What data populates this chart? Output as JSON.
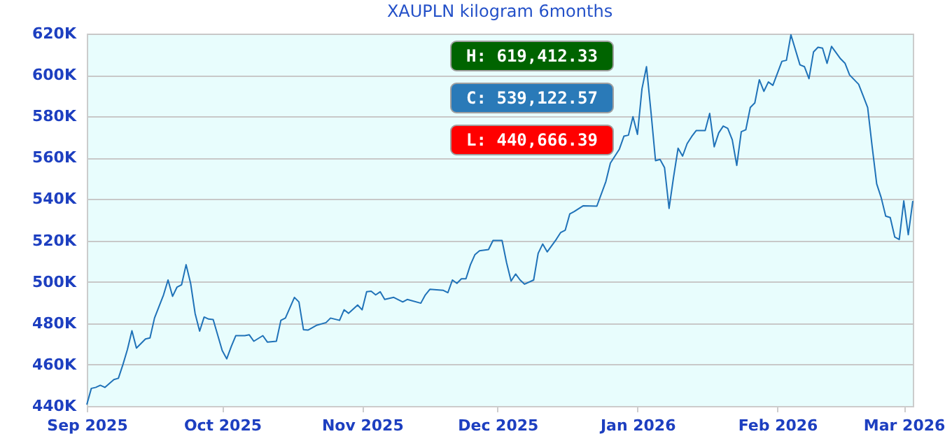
{
  "chart_data": {
    "type": "line",
    "title": "XAUPLN kilogram  6months",
    "x": [
      "2025-09-01",
      "2025-09-02",
      "2025-09-03",
      "2025-09-04",
      "2025-09-05",
      "2025-09-07",
      "2025-09-08",
      "2025-09-09",
      "2025-09-10",
      "2025-09-11",
      "2025-09-12",
      "2025-09-14",
      "2025-09-15",
      "2025-09-16",
      "2025-09-18",
      "2025-09-19",
      "2025-09-20",
      "2025-09-21",
      "2025-09-22",
      "2025-09-23",
      "2025-09-24",
      "2025-09-25",
      "2025-09-26",
      "2025-09-27",
      "2025-09-28",
      "2025-09-29",
      "2025-10-01",
      "2025-10-02",
      "2025-10-03",
      "2025-10-04",
      "2025-10-06",
      "2025-10-07",
      "2025-10-08",
      "2025-10-10",
      "2025-10-11",
      "2025-10-13",
      "2025-10-14",
      "2025-10-15",
      "2025-10-17",
      "2025-10-18",
      "2025-10-19",
      "2025-10-20",
      "2025-10-22",
      "2025-10-24",
      "2025-10-25",
      "2025-10-27",
      "2025-10-28",
      "2025-10-29",
      "2025-10-31",
      "2025-11-01",
      "2025-11-02",
      "2025-11-03",
      "2025-11-04",
      "2025-11-05",
      "2025-11-06",
      "2025-11-08",
      "2025-11-10",
      "2025-11-11",
      "2025-11-14",
      "2025-11-15",
      "2025-11-16",
      "2025-11-19",
      "2025-11-20",
      "2025-11-21",
      "2025-11-22",
      "2025-11-23",
      "2025-11-24",
      "2025-11-25",
      "2025-11-26",
      "2025-11-27",
      "2025-11-29",
      "2025-11-30",
      "2025-12-02",
      "2025-12-03",
      "2025-12-04",
      "2025-12-05",
      "2025-12-06",
      "2025-12-07",
      "2025-12-09",
      "2025-12-10",
      "2025-12-11",
      "2025-12-12",
      "2025-12-14",
      "2025-12-15",
      "2025-12-16",
      "2025-12-17",
      "2025-12-18",
      "2025-12-20",
      "2025-12-23",
      "2025-12-25",
      "2025-12-26",
      "2025-12-27",
      "2025-12-28",
      "2025-12-29",
      "2025-12-30",
      "2025-12-31",
      "2026-01-01",
      "2026-01-02",
      "2026-01-03",
      "2026-01-04",
      "2026-01-05",
      "2026-01-06",
      "2026-01-07",
      "2026-01-08",
      "2026-01-09",
      "2026-01-10",
      "2026-01-11",
      "2026-01-12",
      "2026-01-13",
      "2026-01-14",
      "2026-01-16",
      "2026-01-17",
      "2026-01-18",
      "2026-01-19",
      "2026-01-20",
      "2026-01-21",
      "2026-01-22",
      "2026-01-23",
      "2026-01-24",
      "2026-01-25",
      "2026-01-26",
      "2026-01-27",
      "2026-01-28",
      "2026-01-29",
      "2026-01-30",
      "2026-01-31",
      "2026-02-02",
      "2026-02-03",
      "2026-02-04",
      "2026-02-06",
      "2026-02-07",
      "2026-02-08",
      "2026-02-09",
      "2026-02-10",
      "2026-02-11",
      "2026-02-12",
      "2026-02-13",
      "2026-02-15",
      "2026-02-16",
      "2026-02-17",
      "2026-02-19",
      "2026-02-20",
      "2026-02-21",
      "2026-02-22",
      "2026-02-23",
      "2026-02-24",
      "2026-02-25",
      "2026-02-26",
      "2026-02-27",
      "2026-02-28",
      "2026-03-01",
      "2026-03-02",
      "2026-03-03"
    ],
    "series": [
      {
        "color": "#1f72b8",
        "values": [
          440700,
          448500,
          449000,
          450000,
          449000,
          452800,
          453400,
          460000,
          467300,
          476400,
          468000,
          472400,
          472900,
          482500,
          493700,
          500900,
          493000,
          497500,
          498600,
          508300,
          499300,
          484700,
          476200,
          483000,
          482000,
          481800,
          466800,
          462800,
          468700,
          474000,
          474000,
          474400,
          471300,
          474000,
          470900,
          471300,
          481400,
          482500,
          492500,
          490300,
          476900,
          476700,
          479100,
          480300,
          482500,
          481400,
          486500,
          484800,
          488800,
          486500,
          495200,
          495500,
          493700,
          495200,
          491500,
          492500,
          490300,
          491500,
          489700,
          493700,
          496400,
          495900,
          494800,
          500900,
          499300,
          501500,
          501500,
          508300,
          513200,
          515000,
          515600,
          520000,
          520000,
          509300,
          500400,
          503800,
          500900,
          498900,
          500900,
          513800,
          518300,
          514500,
          520500,
          523900,
          525000,
          532800,
          534000,
          536800,
          536600,
          548500,
          557400,
          560800,
          564200,
          570400,
          570900,
          579800,
          571300,
          593300,
          604000,
          582000,
          558600,
          559200,
          555200,
          535500,
          550700,
          564600,
          560800,
          566800,
          570200,
          573100,
          573100,
          581400,
          565300,
          572000,
          575300,
          574200,
          568700,
          556300,
          572600,
          573500,
          584300,
          586500,
          597700,
          592100,
          596600,
          595000,
          606600,
          607100,
          619400,
          604900,
          604000,
          598200,
          611100,
          613400,
          613000,
          605600,
          613800,
          607800,
          605600,
          600000,
          595500,
          589900,
          584300,
          565300,
          547400,
          540700,
          531800,
          531100,
          521700,
          520500,
          539100,
          522800,
          539100
        ]
      }
    ],
    "xlim": [
      "2025-09-01",
      "2026-03-03"
    ],
    "xticks": [
      {
        "value": "2025-09-01",
        "label": "Sep 2025"
      },
      {
        "value": "2025-10-01",
        "label": "Oct 2025"
      },
      {
        "value": "2025-11-01",
        "label": "Nov 2025"
      },
      {
        "value": "2025-12-01",
        "label": "Dec 2025"
      },
      {
        "value": "2026-01-01",
        "label": "Jan 2026"
      },
      {
        "value": "2026-02-01",
        "label": "Feb 2026"
      },
      {
        "value": "2026-03-01",
        "label": "Mar 2026"
      }
    ],
    "ylim": [
      440000,
      620000
    ],
    "yticks": [
      {
        "value": 440000,
        "label": "440K"
      },
      {
        "value": 460000,
        "label": "460K"
      },
      {
        "value": 480000,
        "label": "480K"
      },
      {
        "value": 500000,
        "label": "500K"
      },
      {
        "value": 520000,
        "label": "520K"
      },
      {
        "value": 540000,
        "label": "540K"
      },
      {
        "value": 560000,
        "label": "560K"
      },
      {
        "value": 580000,
        "label": "580K"
      },
      {
        "value": 600000,
        "label": "600K"
      },
      {
        "value": 620000,
        "label": "620K"
      }
    ],
    "grid": "y",
    "annotations": [
      "H: 619,412.33",
      "C: 539,122.57",
      "L: 440,666.39"
    ]
  }
}
